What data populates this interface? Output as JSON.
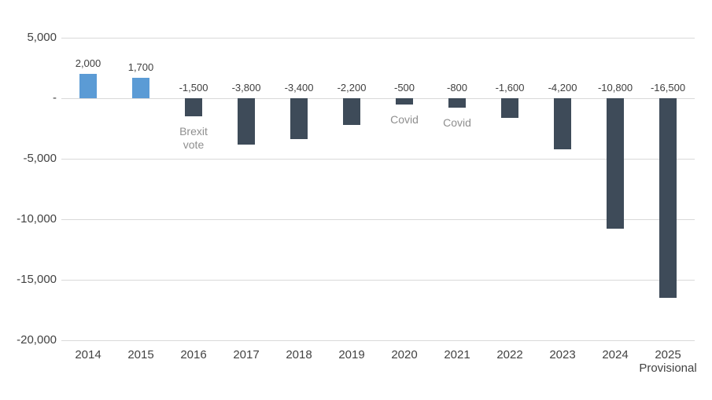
{
  "chart_data": {
    "type": "bar",
    "title": "",
    "xlabel": "",
    "ylabel": "",
    "categories": [
      "2014",
      "2015",
      "2016",
      "2017",
      "2018",
      "2019",
      "2020",
      "2021",
      "2022",
      "2023",
      "2024",
      "2025"
    ],
    "category_sublabels": {
      "11": "Provisional"
    },
    "values": [
      2000,
      1700,
      -1500,
      -3800,
      -3400,
      -2200,
      -500,
      -800,
      -1600,
      -4200,
      -10800,
      -16500
    ],
    "value_labels": [
      "2,000",
      "1,700",
      "-1,500",
      "-3,800",
      "-3,400",
      "-2,200",
      "-500",
      "-800",
      "-1,600",
      "-4,200",
      "-10,800",
      "-16,500"
    ],
    "yticks": [
      {
        "value": 5000,
        "label": "5,000"
      },
      {
        "value": 0,
        "label": "-"
      },
      {
        "value": -5000,
        "label": "-5,000"
      },
      {
        "value": -10000,
        "label": "-10,000"
      },
      {
        "value": -15000,
        "label": "-15,000"
      },
      {
        "value": -20000,
        "label": "-20,000"
      }
    ],
    "ylim": [
      -20000,
      5000
    ],
    "grid": true,
    "legend": "none",
    "annotations": [
      {
        "index": 2,
        "lines": [
          "Brexit",
          "vote"
        ]
      },
      {
        "index": 6,
        "lines": [
          "Covid"
        ]
      },
      {
        "index": 7,
        "lines": [
          "Covid"
        ]
      }
    ],
    "colors": {
      "positive_bar": "#5b9bd5",
      "negative_bar": "#3e4b59",
      "gridline": "#d9d9d9",
      "value_label": "#404040",
      "axis_label": "#424242",
      "annotation": "#8f8f8f"
    }
  }
}
